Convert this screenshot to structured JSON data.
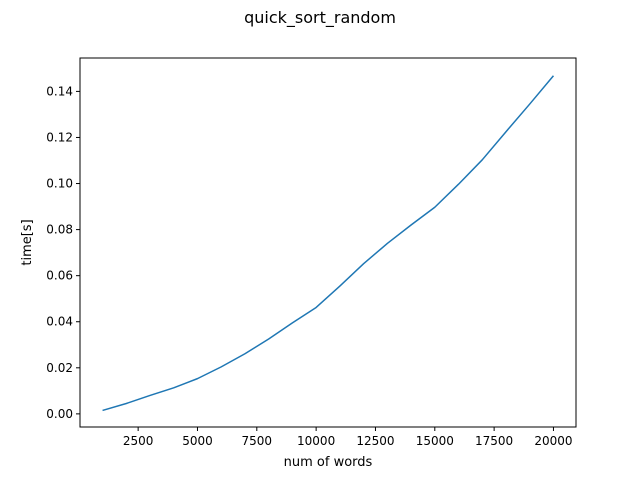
{
  "chart_data": {
    "type": "line",
    "title": "quick_sort_random",
    "xlabel": "num of words",
    "ylabel": "time[s]",
    "xlim": [
      50,
      20950
    ],
    "ylim": [
      -0.0057,
      0.1545
    ],
    "x_ticks": [
      2500,
      5000,
      7500,
      10000,
      12500,
      15000,
      17500,
      20000
    ],
    "x_tick_labels": [
      "2500",
      "5000",
      "7500",
      "10000",
      "12500",
      "15000",
      "17500",
      "20000"
    ],
    "y_ticks": [
      0.0,
      0.02,
      0.04,
      0.06,
      0.08,
      0.1,
      0.12,
      0.14
    ],
    "y_tick_labels": [
      "0.00",
      "0.02",
      "0.04",
      "0.06",
      "0.08",
      "0.10",
      "0.12",
      "0.14"
    ],
    "grid": false,
    "series": [
      {
        "color": "#1f77b4",
        "x": [
          1000,
          2000,
          3000,
          4000,
          5000,
          6000,
          7000,
          8000,
          9000,
          10000,
          11000,
          12000,
          13000,
          14000,
          15000,
          16000,
          17000,
          18000,
          19000,
          20000
        ],
        "y": [
          0.0015,
          0.0045,
          0.008,
          0.0113,
          0.0153,
          0.0204,
          0.0261,
          0.0325,
          0.0395,
          0.0462,
          0.0555,
          0.0652,
          0.074,
          0.082,
          0.0897,
          0.0997,
          0.1103,
          0.1225,
          0.1345,
          0.1468
        ]
      }
    ]
  }
}
